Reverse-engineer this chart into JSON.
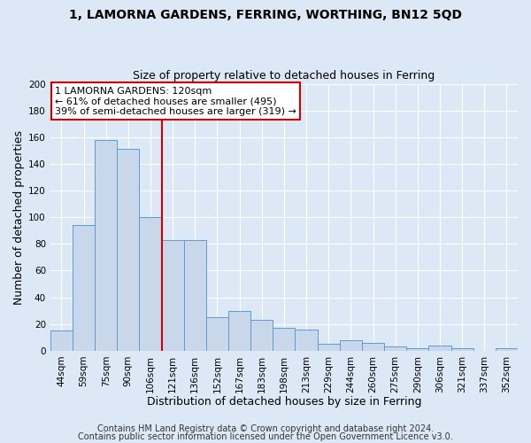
{
  "title": "1, LAMORNA GARDENS, FERRING, WORTHING, BN12 5QD",
  "subtitle": "Size of property relative to detached houses in Ferring",
  "xlabel": "Distribution of detached houses by size in Ferring",
  "ylabel": "Number of detached properties",
  "bar_labels": [
    "44sqm",
    "59sqm",
    "75sqm",
    "90sqm",
    "106sqm",
    "121sqm",
    "136sqm",
    "152sqm",
    "167sqm",
    "183sqm",
    "198sqm",
    "213sqm",
    "229sqm",
    "244sqm",
    "260sqm",
    "275sqm",
    "290sqm",
    "306sqm",
    "321sqm",
    "337sqm",
    "352sqm"
  ],
  "bar_values": [
    15,
    94,
    158,
    151,
    100,
    83,
    83,
    25,
    30,
    23,
    17,
    16,
    5,
    8,
    6,
    3,
    2,
    4,
    2,
    0,
    2
  ],
  "bar_color": "#c8d8ea",
  "bar_edgecolor": "#5b9bd5",
  "vline_index": 4.5,
  "vline_color": "#cc0000",
  "annotation_title": "1 LAMORNA GARDENS: 120sqm",
  "annotation_line1": "← 61% of detached houses are smaller (495)",
  "annotation_line2": "39% of semi-detached houses are larger (319) →",
  "annotation_box_facecolor": "#ffffff",
  "annotation_box_edgecolor": "#cc0000",
  "ylim": [
    0,
    200
  ],
  "yticks": [
    0,
    20,
    40,
    60,
    80,
    100,
    120,
    140,
    160,
    180,
    200
  ],
  "footnote1": "Contains HM Land Registry data © Crown copyright and database right 2024.",
  "footnote2": "Contains public sector information licensed under the Open Government Licence v3.0.",
  "background_color": "#dce8f5",
  "grid_color": "#ffffff",
  "title_fontsize": 10,
  "subtitle_fontsize": 9,
  "axis_label_fontsize": 9,
  "tick_fontsize": 7.5,
  "annotation_fontsize": 8,
  "footnote_fontsize": 7
}
